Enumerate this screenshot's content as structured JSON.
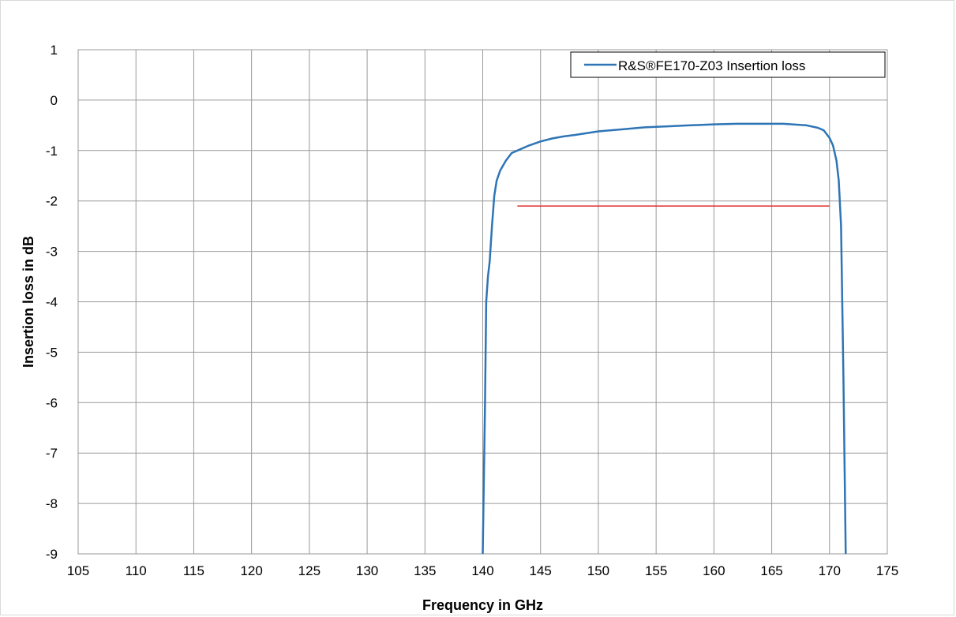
{
  "chart_data": {
    "type": "line",
    "title": "",
    "xlabel": "Frequency in GHz",
    "ylabel": "Insertion loss in dB",
    "xlim": [
      105,
      175
    ],
    "ylim": [
      -9,
      1
    ],
    "x_ticks": [
      105,
      110,
      115,
      120,
      125,
      130,
      135,
      140,
      145,
      150,
      155,
      160,
      165,
      170,
      175
    ],
    "y_ticks": [
      1,
      0,
      -1,
      -2,
      -3,
      -4,
      -5,
      -6,
      -7,
      -8,
      -9
    ],
    "grid": true,
    "legend_position": "top-right",
    "series": [
      {
        "name": "R&S®FE170-Z03 Insertion loss",
        "color": "#2e75b6",
        "x": [
          140.0,
          140.2,
          140.3,
          140.45,
          140.6,
          140.8,
          141.0,
          141.2,
          141.5,
          142.0,
          142.5,
          143.0,
          144.0,
          145.0,
          146.0,
          147.0,
          148.0,
          150.0,
          152.0,
          154.0,
          156.0,
          158.0,
          160.0,
          162.0,
          164.0,
          166.0,
          168.0,
          169.0,
          169.5,
          170.0,
          170.3,
          170.6,
          170.8,
          171.0,
          171.2,
          171.4
        ],
        "y": [
          -9.0,
          -6.0,
          -4.0,
          -3.5,
          -3.2,
          -2.5,
          -1.9,
          -1.6,
          -1.4,
          -1.2,
          -1.05,
          -1.0,
          -0.9,
          -0.82,
          -0.76,
          -0.72,
          -0.69,
          -0.62,
          -0.58,
          -0.54,
          -0.52,
          -0.5,
          -0.48,
          -0.47,
          -0.47,
          -0.47,
          -0.5,
          -0.55,
          -0.6,
          -0.75,
          -0.9,
          -1.2,
          -1.6,
          -2.5,
          -5.5,
          -9.0
        ]
      },
      {
        "name": "",
        "color": "#e03030",
        "x": [
          143.0,
          170.0
        ],
        "y": [
          -2.1,
          -2.1
        ]
      }
    ]
  }
}
